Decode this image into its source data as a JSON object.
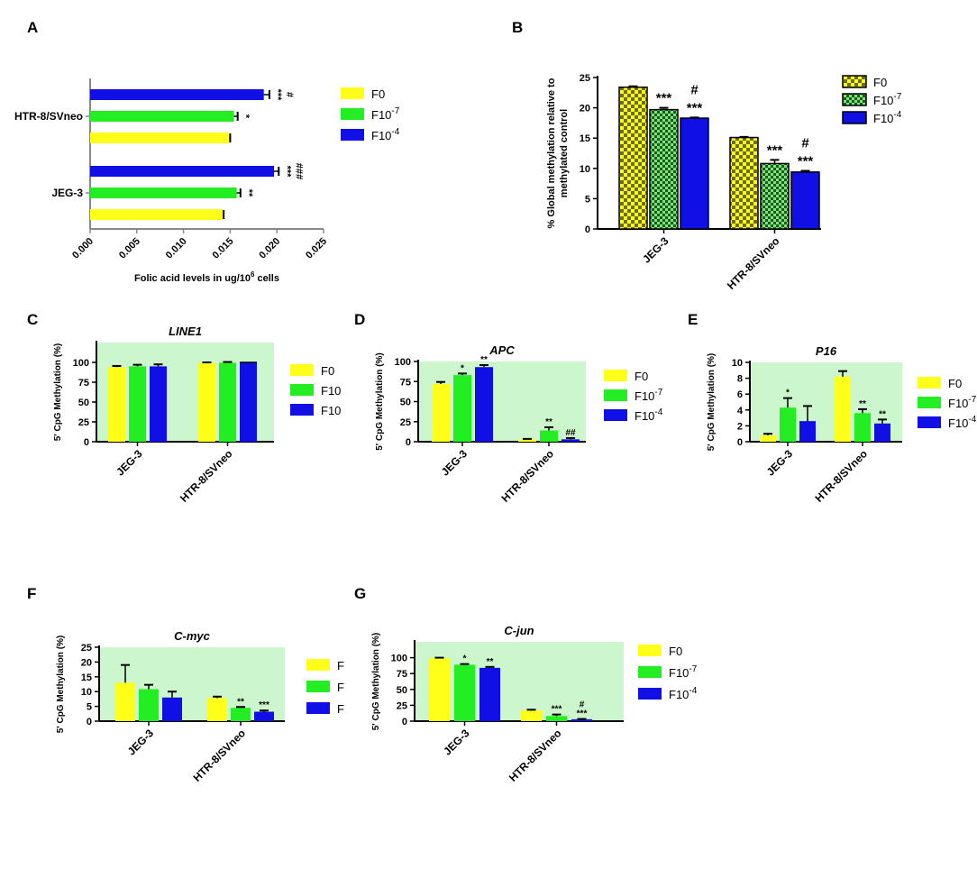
{
  "colors": {
    "F0": "#ffff1a",
    "F10_7": "#22ee22",
    "F10_4": "#1010e6",
    "panel_bg": "#ccf7cc",
    "axis": "#000000"
  },
  "chart_data": [
    {
      "id": "A",
      "panel_label": "A",
      "type": "bar",
      "orientation": "horizontal",
      "title": "",
      "xlabel": "Folic acid levels in ug/10⁶ cells",
      "ylabel": "",
      "xlim": [
        0,
        0.025
      ],
      "xticks": [
        "0.000",
        "0.005",
        "0.010",
        "0.015",
        "0.020",
        "0.025"
      ],
      "categories": [
        "HTR-8/SVneo",
        "JEG-3"
      ],
      "series": [
        {
          "name": "F0",
          "color_key": "F0",
          "values": [
            0.0149,
            0.0142
          ],
          "errors": [
            0.0001,
            0.0001
          ],
          "annotations": [
            "",
            ""
          ]
        },
        {
          "name": "F10⁻⁷",
          "color_key": "F10_7",
          "values": [
            0.0154,
            0.0157
          ],
          "errors": [
            0.0004,
            0.0004
          ],
          "annotations": [
            "*",
            "**"
          ]
        },
        {
          "name": "F10⁻⁴",
          "color_key": "F10_4",
          "values": [
            0.0186,
            0.0197
          ],
          "errors": [
            0.0006,
            0.0005
          ],
          "annotations": [
            "***",
            "***"
          ],
          "hash": [
            "#",
            "###"
          ]
        }
      ],
      "legend": [
        "F0",
        "F10⁻⁷",
        "F10⁻⁴"
      ],
      "legend_position": "right"
    },
    {
      "id": "B",
      "panel_label": "B",
      "type": "bar",
      "pattern": "checker",
      "title": "",
      "xlabel": "",
      "ylabel": "% Global methylation relative to methylated control",
      "ylim": [
        0,
        25
      ],
      "yticks": [
        "0",
        "5",
        "10",
        "15",
        "20",
        "25"
      ],
      "categories": [
        "JEG-3",
        "HTR-8/SVneo"
      ],
      "series": [
        {
          "name": "F0",
          "color_key": "F0",
          "values": [
            23.4,
            15.1
          ],
          "errors": [
            0.15,
            0.1
          ],
          "annotations": [
            "",
            ""
          ]
        },
        {
          "name": "F10⁻⁷",
          "color_key": "F10_7",
          "values": [
            19.7,
            10.8
          ],
          "errors": [
            0.3,
            0.6
          ],
          "annotations": [
            "***",
            "***"
          ]
        },
        {
          "name": "F10⁻⁴",
          "color_key": "F10_4",
          "values": [
            18.3,
            9.4
          ],
          "errors": [
            0.1,
            0.2
          ],
          "annotations": [
            "***",
            "***"
          ],
          "hash": [
            "#",
            "#"
          ]
        }
      ],
      "legend": [
        "F0",
        "F10⁻⁷",
        "F10⁻⁴"
      ],
      "legend_position": "right"
    },
    {
      "id": "C",
      "panel_label": "C",
      "type": "bar",
      "title": "LINE1",
      "ylabel": "5' CpG Methylation (%)",
      "ylim": [
        0,
        125
      ],
      "yticks": [
        "0",
        "25",
        "50",
        "75",
        "100"
      ],
      "categories": [
        "JEG-3",
        "HTR-8/SVneo"
      ],
      "series": [
        {
          "name": "F0",
          "color_key": "F0",
          "values": [
            94,
            99.5
          ],
          "errors": [
            1.5,
            0.5
          ],
          "annotations": [
            "",
            ""
          ]
        },
        {
          "name": "F10",
          "color_key": "F10_7",
          "values": [
            95,
            99.5
          ],
          "errors": [
            2,
            1
          ],
          "annotations": [
            "",
            ""
          ]
        },
        {
          "name": "F10",
          "color_key": "F10_4",
          "values": [
            95,
            100
          ],
          "errors": [
            2.5,
            0
          ],
          "annotations": [
            "",
            ""
          ]
        }
      ],
      "legend": [
        "F0",
        "F10",
        "F10"
      ],
      "legend_position": "right"
    },
    {
      "id": "D",
      "panel_label": "D",
      "type": "bar",
      "title": "APC",
      "ylabel": "5' CpG Methylation (%)",
      "ylim": [
        0,
        100
      ],
      "yticks": [
        "0",
        "25",
        "50",
        "75",
        "100"
      ],
      "categories": [
        "JEG-3",
        "HTR-8/SVneo"
      ],
      "series": [
        {
          "name": "F0",
          "color_key": "F0",
          "values": [
            72,
            3
          ],
          "errors": [
            2.5,
            0.5
          ],
          "annotations": [
            "",
            ""
          ]
        },
        {
          "name": "F10⁻⁷",
          "color_key": "F10_7",
          "values": [
            83,
            14
          ],
          "errors": [
            2,
            4
          ],
          "annotations": [
            "*",
            "**"
          ]
        },
        {
          "name": "F10⁻⁴",
          "color_key": "F10_4",
          "values": [
            93,
            3
          ],
          "errors": [
            2.5,
            1.5
          ],
          "annotations": [
            "**",
            ""
          ],
          "hash": [
            "",
            "##"
          ]
        }
      ],
      "legend": [
        "F0",
        "F10⁻⁷",
        "F10⁻⁴"
      ],
      "legend_position": "right"
    },
    {
      "id": "E",
      "panel_label": "E",
      "type": "bar",
      "title": "P16",
      "ylabel": "5' CpG Methylation (%)",
      "ylim": [
        0,
        10
      ],
      "yticks": [
        "0",
        "2",
        "4",
        "6",
        "8",
        "10"
      ],
      "categories": [
        "JEG-3",
        "HTR-8/SVneo"
      ],
      "series": [
        {
          "name": "F0",
          "color_key": "F0",
          "values": [
            0.8,
            8.2
          ],
          "errors": [
            0.2,
            0.7
          ],
          "annotations": [
            "",
            ""
          ]
        },
        {
          "name": "F10⁻⁷",
          "color_key": "F10_7",
          "values": [
            4.3,
            3.6
          ],
          "errors": [
            1.2,
            0.5
          ],
          "annotations": [
            "*",
            "**"
          ]
        },
        {
          "name": "F10⁻⁴",
          "color_key": "F10_4",
          "values": [
            2.6,
            2.3
          ],
          "errors": [
            1.9,
            0.5
          ],
          "annotations": [
            "",
            "**"
          ]
        }
      ],
      "legend": [
        "F0",
        "F10⁻⁷",
        "F10⁻⁴"
      ],
      "legend_position": "right"
    },
    {
      "id": "F",
      "panel_label": "F",
      "type": "bar",
      "title": "C-myc",
      "ylabel": "5' CpG Methylation (%)",
      "ylim": [
        0,
        25
      ],
      "yticks": [
        "0",
        "5",
        "10",
        "15",
        "20",
        "25"
      ],
      "categories": [
        "JEG-3",
        "HTR-8/SVneo"
      ],
      "series": [
        {
          "name": "F",
          "color_key": "F0",
          "values": [
            13,
            7.8
          ],
          "errors": [
            6,
            0.5
          ],
          "annotations": [
            "",
            ""
          ]
        },
        {
          "name": "F",
          "color_key": "F10_7",
          "values": [
            10.8,
            4.5
          ],
          "errors": [
            1.5,
            0.3
          ],
          "annotations": [
            "",
            "**"
          ]
        },
        {
          "name": "F",
          "color_key": "F10_4",
          "values": [
            8,
            3.2
          ],
          "errors": [
            2,
            0.4
          ],
          "annotations": [
            "",
            "***"
          ]
        }
      ],
      "legend": [
        "F",
        "F",
        "F"
      ],
      "legend_position": "right"
    },
    {
      "id": "G",
      "panel_label": "G",
      "type": "bar",
      "title": "C-jun",
      "ylabel": "5' CpG Methylation (%)",
      "ylim": [
        0,
        125
      ],
      "yticks": [
        "0",
        "25",
        "50",
        "75",
        "100"
      ],
      "categories": [
        "JEG-3",
        "HTR-8/SVneo"
      ],
      "series": [
        {
          "name": "F0",
          "color_key": "F0",
          "values": [
            99,
            17
          ],
          "errors": [
            1,
            1
          ],
          "annotations": [
            "",
            ""
          ]
        },
        {
          "name": "F10⁻⁷",
          "color_key": "F10_7",
          "values": [
            89,
            8
          ],
          "errors": [
            1,
            2.5
          ],
          "annotations": [
            "*",
            "***"
          ]
        },
        {
          "name": "F10⁻⁴",
          "color_key": "F10_4",
          "values": [
            84,
            3
          ],
          "errors": [
            1.5,
            0.5
          ],
          "annotations": [
            "**",
            "***"
          ],
          "hash": [
            "",
            "#"
          ]
        }
      ],
      "legend": [
        "F0",
        "F10⁻⁷",
        "F10⁻⁴"
      ],
      "legend_position": "right"
    }
  ]
}
